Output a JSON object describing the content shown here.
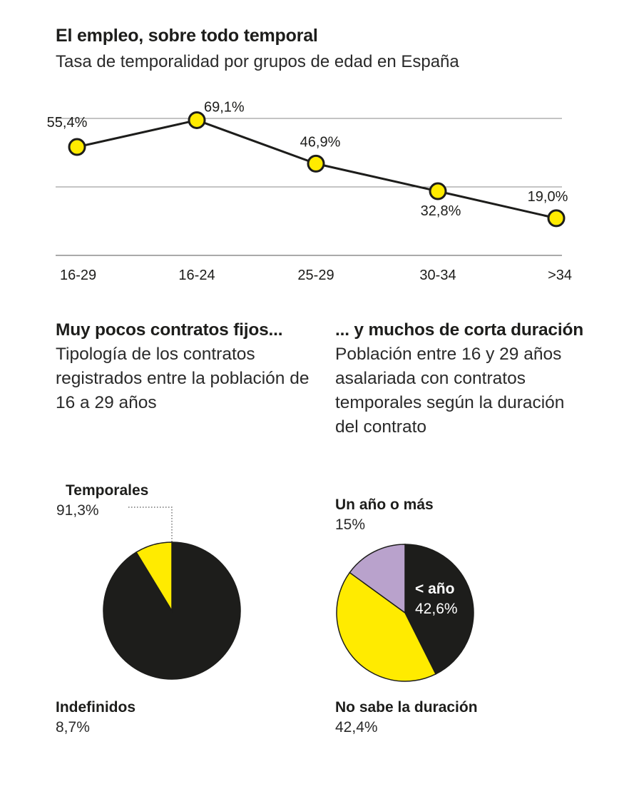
{
  "header": {
    "title": "El empleo, sobre todo temporal",
    "subtitle": "Tasa de temporalidad por grupos de edad en España"
  },
  "colors": {
    "yellow": "#ffeb00",
    "black": "#1d1d1b",
    "lilac": "#b9a2cc",
    "grid": "#8a8a8a"
  },
  "chart_data": [
    {
      "type": "line",
      "title": "El empleo, sobre todo temporal",
      "subtitle": "Tasa de temporalidad por grupos de edad en España",
      "categories": [
        "16-29",
        "16-24",
        "25-29",
        "30-34",
        ">34"
      ],
      "values": [
        55.4,
        69.1,
        46.9,
        32.8,
        19.0
      ],
      "labels": [
        "55,4%",
        "69,1%",
        "46,9%",
        "32,8%",
        "19,0%"
      ],
      "ylim": [
        0,
        70
      ],
      "grid": true
    },
    {
      "type": "pie",
      "title": "Muy pocos contratos fijos...",
      "subtitle": "Tipología de los contratos registrados entre la población de 16 a 29 años",
      "slices": [
        {
          "name": "Temporales",
          "value": 91.3,
          "label": "91,3%",
          "color": "#1d1d1b"
        },
        {
          "name": "Indefinidos",
          "value": 8.7,
          "label": "8,7%",
          "color": "#ffeb00"
        }
      ]
    },
    {
      "type": "pie",
      "title": "... y muchos de corta duración",
      "subtitle": "Población entre 16 y 29 años asalariada con contratos temporales según la duración del contrato",
      "slices": [
        {
          "name": "< año",
          "value": 42.6,
          "label": "42,6%",
          "color": "#1d1d1b"
        },
        {
          "name": "No sabe la duración",
          "value": 42.4,
          "label": "42,4%",
          "color": "#ffeb00"
        },
        {
          "name": "Un año o más",
          "value": 15,
          "label": "15%",
          "color": "#b9a2cc"
        }
      ]
    }
  ]
}
